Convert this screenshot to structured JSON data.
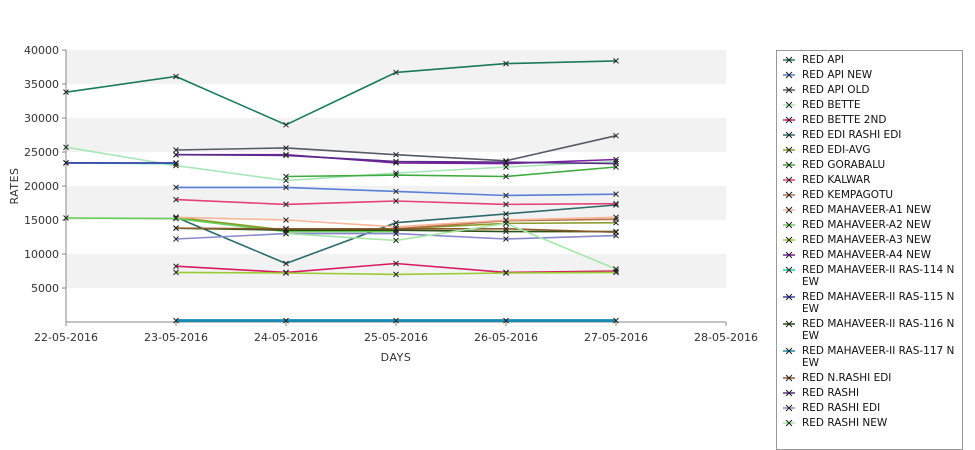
{
  "chart_data": {
    "type": "line",
    "title": "",
    "xlabel": "DAYS",
    "ylabel": "RATES",
    "x_ticks": [
      "22-05-2016",
      "23-05-2016",
      "24-05-2016",
      "25-05-2016",
      "26-05-2016",
      "27-05-2016",
      "28-05-2016"
    ],
    "y_ticks": [
      "5000",
      "10000",
      "15000",
      "20000",
      "25000",
      "30000",
      "35000",
      "40000"
    ],
    "xlim": [
      "22-05-2016",
      "28-05-2016"
    ],
    "ylim": [
      0,
      40000
    ],
    "grid": "alternating horizontal bands",
    "legend": "right",
    "series": [
      {
        "name": "RED API",
        "color": "#1c7a5a",
        "x": [
          "22-05-2016",
          "23-05-2016",
          "24-05-2016",
          "25-05-2016",
          "26-05-2016",
          "27-05-2016"
        ],
        "values": [
          33800,
          36100,
          29000,
          36700,
          38000,
          38400
        ]
      },
      {
        "name": "RED API NEW",
        "color": "#5b7fd6",
        "x": [
          "23-05-2016",
          "24-05-2016",
          "25-05-2016",
          "26-05-2016",
          "27-05-2016"
        ],
        "values": [
          19800,
          19800,
          19200,
          18600,
          18800
        ]
      },
      {
        "name": "RED API OLD",
        "color": "#555b66",
        "x": [
          "23-05-2016",
          "24-05-2016",
          "25-05-2016",
          "26-05-2016",
          "27-05-2016"
        ],
        "values": [
          25300,
          25600,
          24600,
          23700,
          27400
        ]
      },
      {
        "name": "RED BETTE",
        "color": "#a8e6b8",
        "x": [
          "22-05-2016",
          "23-05-2016",
          "24-05-2016",
          "25-05-2016",
          "26-05-2016",
          "27-05-2016"
        ],
        "values": [
          25700,
          23000,
          20800,
          21900,
          22800,
          23600
        ]
      },
      {
        "name": "RED BETTE 2ND",
        "color": "#d81b60",
        "x": [
          "23-05-2016",
          "24-05-2016",
          "25-05-2016",
          "26-05-2016",
          "27-05-2016"
        ],
        "values": [
          8200,
          7300,
          8600,
          7300,
          7500
        ]
      },
      {
        "name": "RED EDI RASHI EDI",
        "color": "#2e6b6b",
        "x": [
          "23-05-2016",
          "24-05-2016",
          "25-05-2016",
          "26-05-2016",
          "27-05-2016"
        ],
        "values": [
          15400,
          8600,
          14600,
          15900,
          17200
        ]
      },
      {
        "name": "RED EDI-AVG",
        "color": "#8a9a2a",
        "x": [
          "23-05-2016",
          "24-05-2016",
          "25-05-2016",
          "26-05-2016",
          "27-05-2016"
        ],
        "values": [
          15400,
          13500,
          13700,
          14500,
          14600
        ]
      },
      {
        "name": "RED GORABALU",
        "color": "#3faa3f",
        "x": [
          "24-05-2016",
          "25-05-2016",
          "26-05-2016",
          "27-05-2016"
        ],
        "values": [
          21400,
          21600,
          21400,
          22800
        ]
      },
      {
        "name": "RED KALWAR",
        "color": "#e5407a",
        "x": [
          "23-05-2016",
          "24-05-2016",
          "25-05-2016",
          "26-05-2016",
          "27-05-2016"
        ],
        "values": [
          18000,
          17300,
          17800,
          17300,
          17400
        ]
      },
      {
        "name": "RED KEMPAGOTU",
        "color": "#b5724a",
        "x": [
          "24-05-2016",
          "25-05-2016",
          "26-05-2016",
          "27-05-2016"
        ],
        "values": [
          13700,
          13700,
          14900,
          15100
        ]
      },
      {
        "name": "RED MAHAVEER-A1 NEW",
        "color": "#f7b59a",
        "x": [
          "23-05-2016",
          "24-05-2016",
          "25-05-2016",
          "26-05-2016",
          "27-05-2016"
        ],
        "values": [
          15400,
          15000,
          14000,
          15000,
          15400
        ]
      },
      {
        "name": "RED MAHAVEER-A2 NEW",
        "color": "#66cc55",
        "x": [
          "22-05-2016",
          "23-05-2016",
          "24-05-2016",
          "25-05-2016"
        ],
        "values": [
          15300,
          15200,
          13300,
          13300
        ]
      },
      {
        "name": "RED MAHAVEER-A3 NEW",
        "color": "#99cc33",
        "x": [
          "23-05-2016",
          "24-05-2016",
          "25-05-2016",
          "26-05-2016",
          "27-05-2016"
        ],
        "values": [
          7300,
          7200,
          7000,
          7200,
          7300
        ]
      },
      {
        "name": "RED MAHAVEER-A4 NEW",
        "color": "#7a1fa2",
        "x": [
          "23-05-2016",
          "24-05-2016",
          "25-05-2016",
          "26-05-2016",
          "27-05-2016"
        ],
        "values": [
          24600,
          24600,
          23400,
          23300,
          23900
        ]
      },
      {
        "name": "RED MAHAVEER-II RAS-114 NEW",
        "color": "#1ad0a0",
        "x": [
          "22-05-2016",
          "23-05-2016"
        ],
        "values": [
          23400,
          23300
        ]
      },
      {
        "name": "RED MAHAVEER-II RAS-115 NEW",
        "color": "#3a3aaa",
        "x": [
          "22-05-2016",
          "23-05-2016"
        ],
        "values": [
          23400,
          23400
        ]
      },
      {
        "name": "RED MAHAVEER-II RAS-116 NEW",
        "color": "#2d5016",
        "x": [
          "23-05-2016",
          "24-05-2016",
          "25-05-2016",
          "26-05-2016",
          "27-05-2016"
        ],
        "values": [
          13800,
          13500,
          13500,
          13300,
          13300
        ]
      },
      {
        "name": "RED MAHAVEER-II RAS-117 NEW",
        "color": "#1a8ab0",
        "x": [
          "23-05-2016",
          "24-05-2016",
          "25-05-2016",
          "26-05-2016",
          "27-05-2016"
        ],
        "values": [
          200,
          200,
          200,
          200,
          200
        ]
      },
      {
        "name": "RED N.RASHI EDI",
        "color": "#8a5a2a",
        "x": [
          "23-05-2016",
          "24-05-2016",
          "25-05-2016",
          "26-05-2016",
          "27-05-2016"
        ],
        "values": [
          13800,
          13700,
          13700,
          13700,
          13200
        ]
      },
      {
        "name": "RED RASHI",
        "color": "#5a2a8a",
        "x": [
          "23-05-2016",
          "24-05-2016",
          "25-05-2016",
          "26-05-2016",
          "27-05-2016"
        ],
        "values": [
          24600,
          24500,
          23600,
          23500,
          23300
        ]
      },
      {
        "name": "RED RASHI EDI",
        "color": "#8888cc",
        "x": [
          "23-05-2016",
          "24-05-2016",
          "25-05-2016",
          "26-05-2016",
          "27-05-2016"
        ],
        "values": [
          12200,
          13000,
          13000,
          12200,
          12700
        ]
      },
      {
        "name": "RED RASHI NEW",
        "color": "#a8e6a8",
        "x": [
          "24-05-2016",
          "25-05-2016",
          "26-05-2016",
          "27-05-2016"
        ],
        "values": [
          13000,
          12000,
          14500,
          7800
        ]
      }
    ]
  }
}
